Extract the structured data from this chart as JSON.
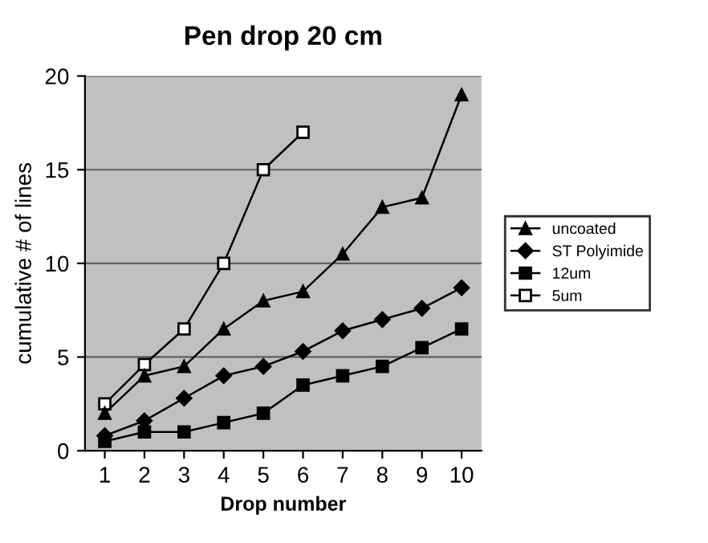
{
  "chart_data": {
    "type": "line",
    "title": "Pen drop 20 cm",
    "xlabel": "Drop number",
    "ylabel": "cumulative # of lines",
    "categories": [
      "1",
      "2",
      "3",
      "4",
      "5",
      "6",
      "7",
      "8",
      "9",
      "10"
    ],
    "series": [
      {
        "name": "uncoated",
        "color": "#000000",
        "marker": "triangle",
        "values": [
          2,
          4,
          4.5,
          6.5,
          8,
          8.5,
          10.5,
          13,
          13.5,
          19
        ]
      },
      {
        "name": "ST Polyimide",
        "color": "#000000",
        "marker": "diamond",
        "values": [
          0.8,
          1.6,
          2.8,
          4,
          4.5,
          5.3,
          6.4,
          7,
          7.6,
          8.7
        ]
      },
      {
        "name": "12um",
        "color": "#000000",
        "marker": "square",
        "values": [
          0.5,
          1,
          1,
          1.5,
          2,
          3.5,
          4,
          4.5,
          5.5,
          6.5
        ]
      },
      {
        "name": "5um",
        "color": "#000000",
        "marker": "square",
        "values": [
          2.5,
          4.6,
          6.5,
          10,
          15,
          17,
          null,
          null,
          null,
          null
        ]
      }
    ],
    "ylim": [
      0,
      20
    ],
    "yticks": [
      0,
      5,
      10,
      15,
      20
    ],
    "grid": "y",
    "legend": "right",
    "line_style": "solid"
  }
}
